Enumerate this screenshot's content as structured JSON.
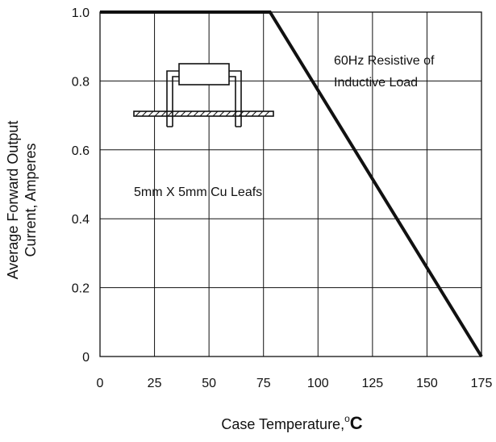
{
  "chart_data": {
    "type": "line",
    "ylabel_line1": "Average Forward Output",
    "ylabel_line2": "Current, Amperes",
    "xlabel_prefix": "Case Temperature,",
    "xlabel_unit_deg": "o",
    "xlabel_unit": "C",
    "xlim": [
      0,
      175
    ],
    "ylim": [
      0,
      1.0
    ],
    "x_ticks": [
      0,
      25,
      50,
      75,
      100,
      125,
      150,
      175
    ],
    "x_tick_labels": [
      "0",
      "25",
      "50",
      "75",
      "100",
      "125",
      "150",
      "175"
    ],
    "y_ticks": [
      0,
      0.2,
      0.4,
      0.6,
      0.8,
      1.0
    ],
    "y_tick_labels": [
      "0",
      "0.2",
      "0.4",
      "0.6",
      "0.8",
      "1.0"
    ],
    "grid": true,
    "series": [
      {
        "x": [
          0,
          78,
          175
        ],
        "y": [
          1.0,
          1.0,
          0.0
        ]
      }
    ],
    "annotations": {
      "load_line1": "60Hz Resistive of",
      "load_line2": "Inductive Load",
      "pad": "5mm X 5mm  Cu Leafs"
    }
  }
}
